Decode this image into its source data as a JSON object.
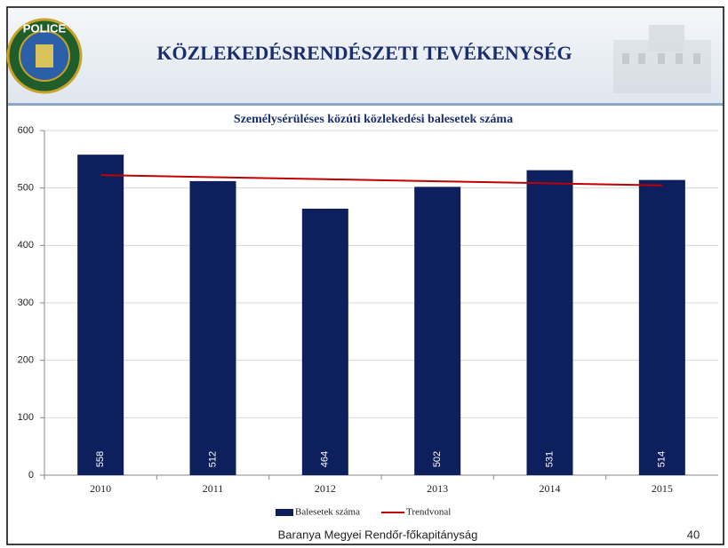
{
  "header": {
    "title": "KÖZLEKEDÉSRENDÉSZETI TEVÉKENYSÉG",
    "logo_text": "POLICE"
  },
  "chart_data": {
    "type": "bar",
    "title": "Személysérüléses közúti közlekedési balesetek száma",
    "categories": [
      "2010",
      "2011",
      "2012",
      "2013",
      "2014",
      "2015"
    ],
    "series": [
      {
        "name": "Balesetek száma",
        "color": "#0d1f5c",
        "values": [
          558,
          512,
          464,
          502,
          531,
          514
        ]
      },
      {
        "name": "Trendvonal",
        "type": "line",
        "color": "#c00000",
        "values": [
          522.4,
          518.9,
          515.3,
          511.7,
          508.1,
          504.6
        ]
      }
    ],
    "ylim": [
      0,
      600
    ],
    "yticks": [
      0,
      100,
      200,
      300,
      400,
      500,
      600
    ],
    "grid": true,
    "legend": "bottom"
  },
  "footer": {
    "organization": "Baranya Megyei Rendőr-főkapitányság",
    "page_number": 40
  }
}
